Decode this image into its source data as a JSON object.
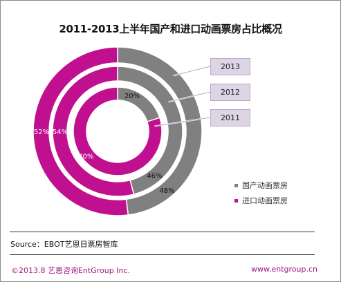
{
  "chart_data": {
    "type": "pie",
    "title": "2011-2013上半年国产和进口动画票房占比概况",
    "series": [
      {
        "name": "2011",
        "labels": [
          "国产动画票房",
          "进口动画票房"
        ],
        "values": [
          20,
          80
        ]
      },
      {
        "name": "2012",
        "labels": [
          "国产动画票房",
          "进口动画票房"
        ],
        "values": [
          46,
          54
        ]
      },
      {
        "name": "2013",
        "labels": [
          "国产动画票房",
          "进口动画票房"
        ],
        "values": [
          48,
          52
        ]
      }
    ],
    "legend": {
      "position": "right",
      "entries": [
        "国产动画票房",
        "进口动画票房"
      ]
    },
    "colors": {
      "domestic": "#808080",
      "imported": "#c0108f"
    }
  },
  "source_text": "Source：EBOT艺恩日票房智库",
  "footer": {
    "copyright": "©2013.8  艺恩咨询EntGroup Inc.",
    "url": "www.entgroup.cn"
  },
  "border_color": "#8a8a8a"
}
